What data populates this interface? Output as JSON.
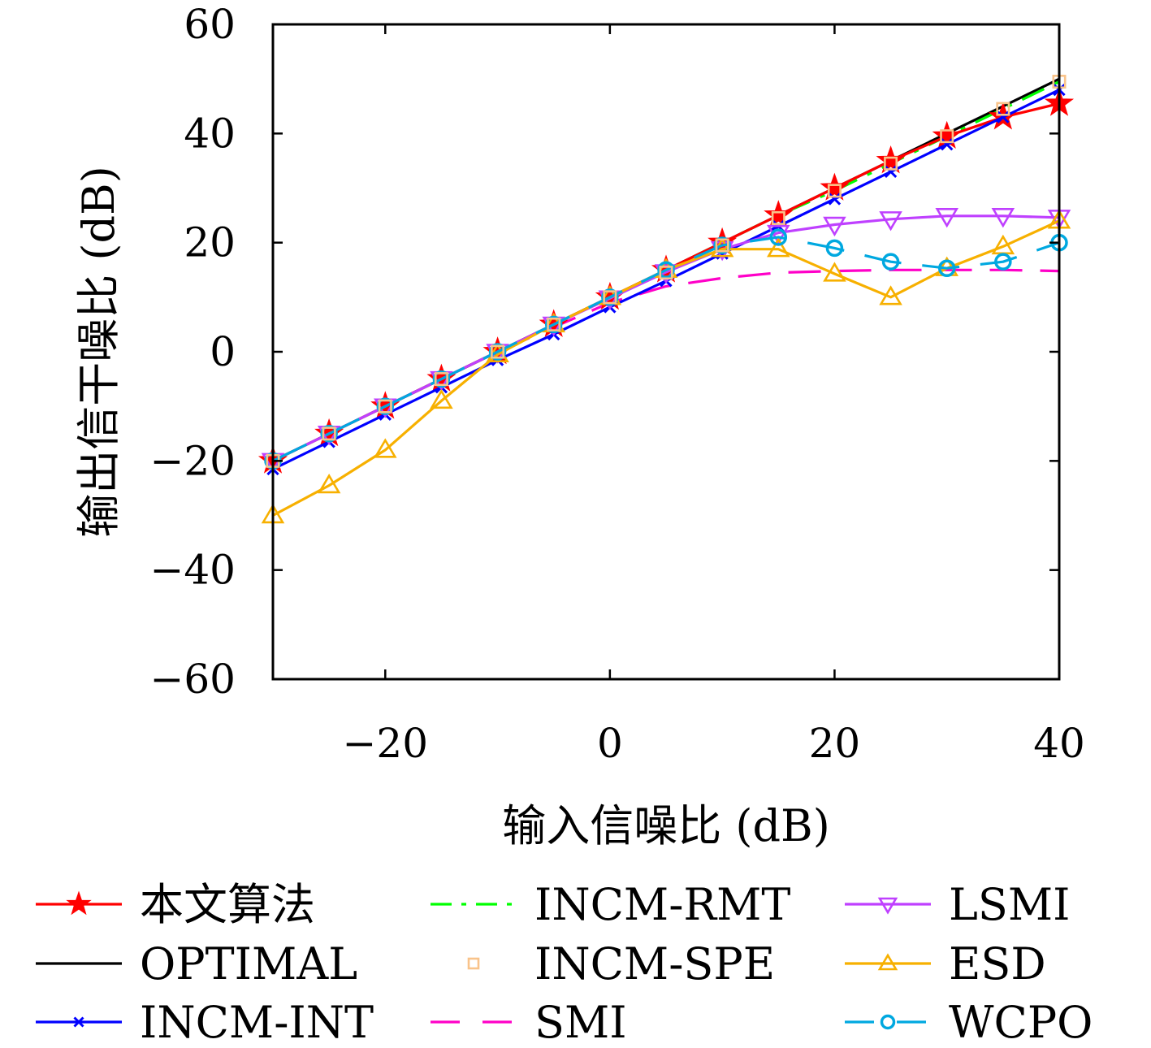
{
  "chart_data": {
    "type": "line",
    "xlabel": "输入信噪比 (dB)",
    "ylabel": "输出信干噪比 (dB)",
    "xlim": [
      -30,
      40
    ],
    "ylim": [
      -60,
      60
    ],
    "xticks": [
      -20,
      0,
      20,
      40
    ],
    "yticks": [
      -60,
      -40,
      -20,
      0,
      20,
      40,
      60
    ],
    "xtick_labels": [
      "−20",
      "0",
      "20",
      "40"
    ],
    "ytick_labels": [
      "−60",
      "−40",
      "−20",
      "0",
      "20",
      "40",
      "60"
    ],
    "grid": false,
    "legend_placement": "bottom",
    "x": [
      -30,
      -25,
      -20,
      -15,
      -10,
      -5,
      0,
      5,
      10,
      15,
      20,
      25,
      30,
      35,
      40
    ],
    "series": [
      {
        "name": "本文算法",
        "color": "#ff0000",
        "line": "solid",
        "marker": "star",
        "values": [
          -20,
          -15,
          -10,
          -5,
          0,
          5,
          10,
          15,
          20,
          25,
          30,
          35,
          39.5,
          43,
          45.5
        ]
      },
      {
        "name": "OPTIMAL",
        "color": "#000000",
        "line": "solid",
        "marker": "none",
        "values": [
          -20,
          -15,
          -10,
          -5,
          0,
          5,
          10,
          15,
          20,
          25,
          30,
          35,
          40,
          45,
          50
        ]
      },
      {
        "name": "INCM-INT",
        "color": "#0000ff",
        "line": "solid",
        "marker": "x",
        "values": [
          -21.5,
          -16.5,
          -11.5,
          -6.5,
          -1.5,
          3.2,
          8.2,
          13,
          18,
          23,
          28,
          33,
          38,
          43,
          48
        ]
      },
      {
        "name": "INCM-RMT",
        "color": "#00ff00",
        "line": "dashdot",
        "marker": "none",
        "values": [
          -20,
          -15,
          -10,
          -5,
          0,
          5,
          10,
          15,
          20,
          25,
          29.5,
          34.5,
          39.5,
          44.5,
          49.5
        ]
      },
      {
        "name": "INCM-SPE",
        "color": "#f9c38a",
        "line": "none",
        "marker": "square",
        "values": [
          -20,
          -15,
          -10,
          -5,
          0,
          5,
          10,
          14.5,
          19.5,
          24.5,
          29.5,
          34.5,
          39.5,
          44.5,
          49.5
        ]
      },
      {
        "name": "SMI",
        "color": "#ff00c8",
        "line": "dashed",
        "marker": "none",
        "values": [
          -20,
          -15,
          -10,
          -5,
          0,
          4.5,
          9,
          12,
          13.5,
          14.5,
          14.8,
          15,
          15,
          15,
          14.8
        ]
      },
      {
        "name": "LSMI",
        "color": "#bf40ff",
        "line": "solid",
        "marker": "triangle-down",
        "values": [
          -20,
          -15,
          -10,
          -5,
          0,
          5,
          9.8,
          14.6,
          18.8,
          21.8,
          23.3,
          24.3,
          24.9,
          24.9,
          24.6
        ]
      },
      {
        "name": "ESD",
        "color": "#f7b000",
        "line": "solid",
        "marker": "triangle-up",
        "values": [
          -30,
          -24.5,
          -18,
          -9,
          -0.5,
          5,
          10,
          15,
          18.8,
          18.8,
          14.3,
          10,
          15.3,
          19.3,
          24
        ]
      },
      {
        "name": "WCPO",
        "color": "#00a8e0",
        "line": "longdash",
        "marker": "circle",
        "values": [
          -20,
          -15,
          -10,
          -5,
          0,
          5,
          10,
          15,
          19.5,
          21,
          19,
          16.5,
          15.3,
          16.5,
          20
        ]
      }
    ]
  }
}
